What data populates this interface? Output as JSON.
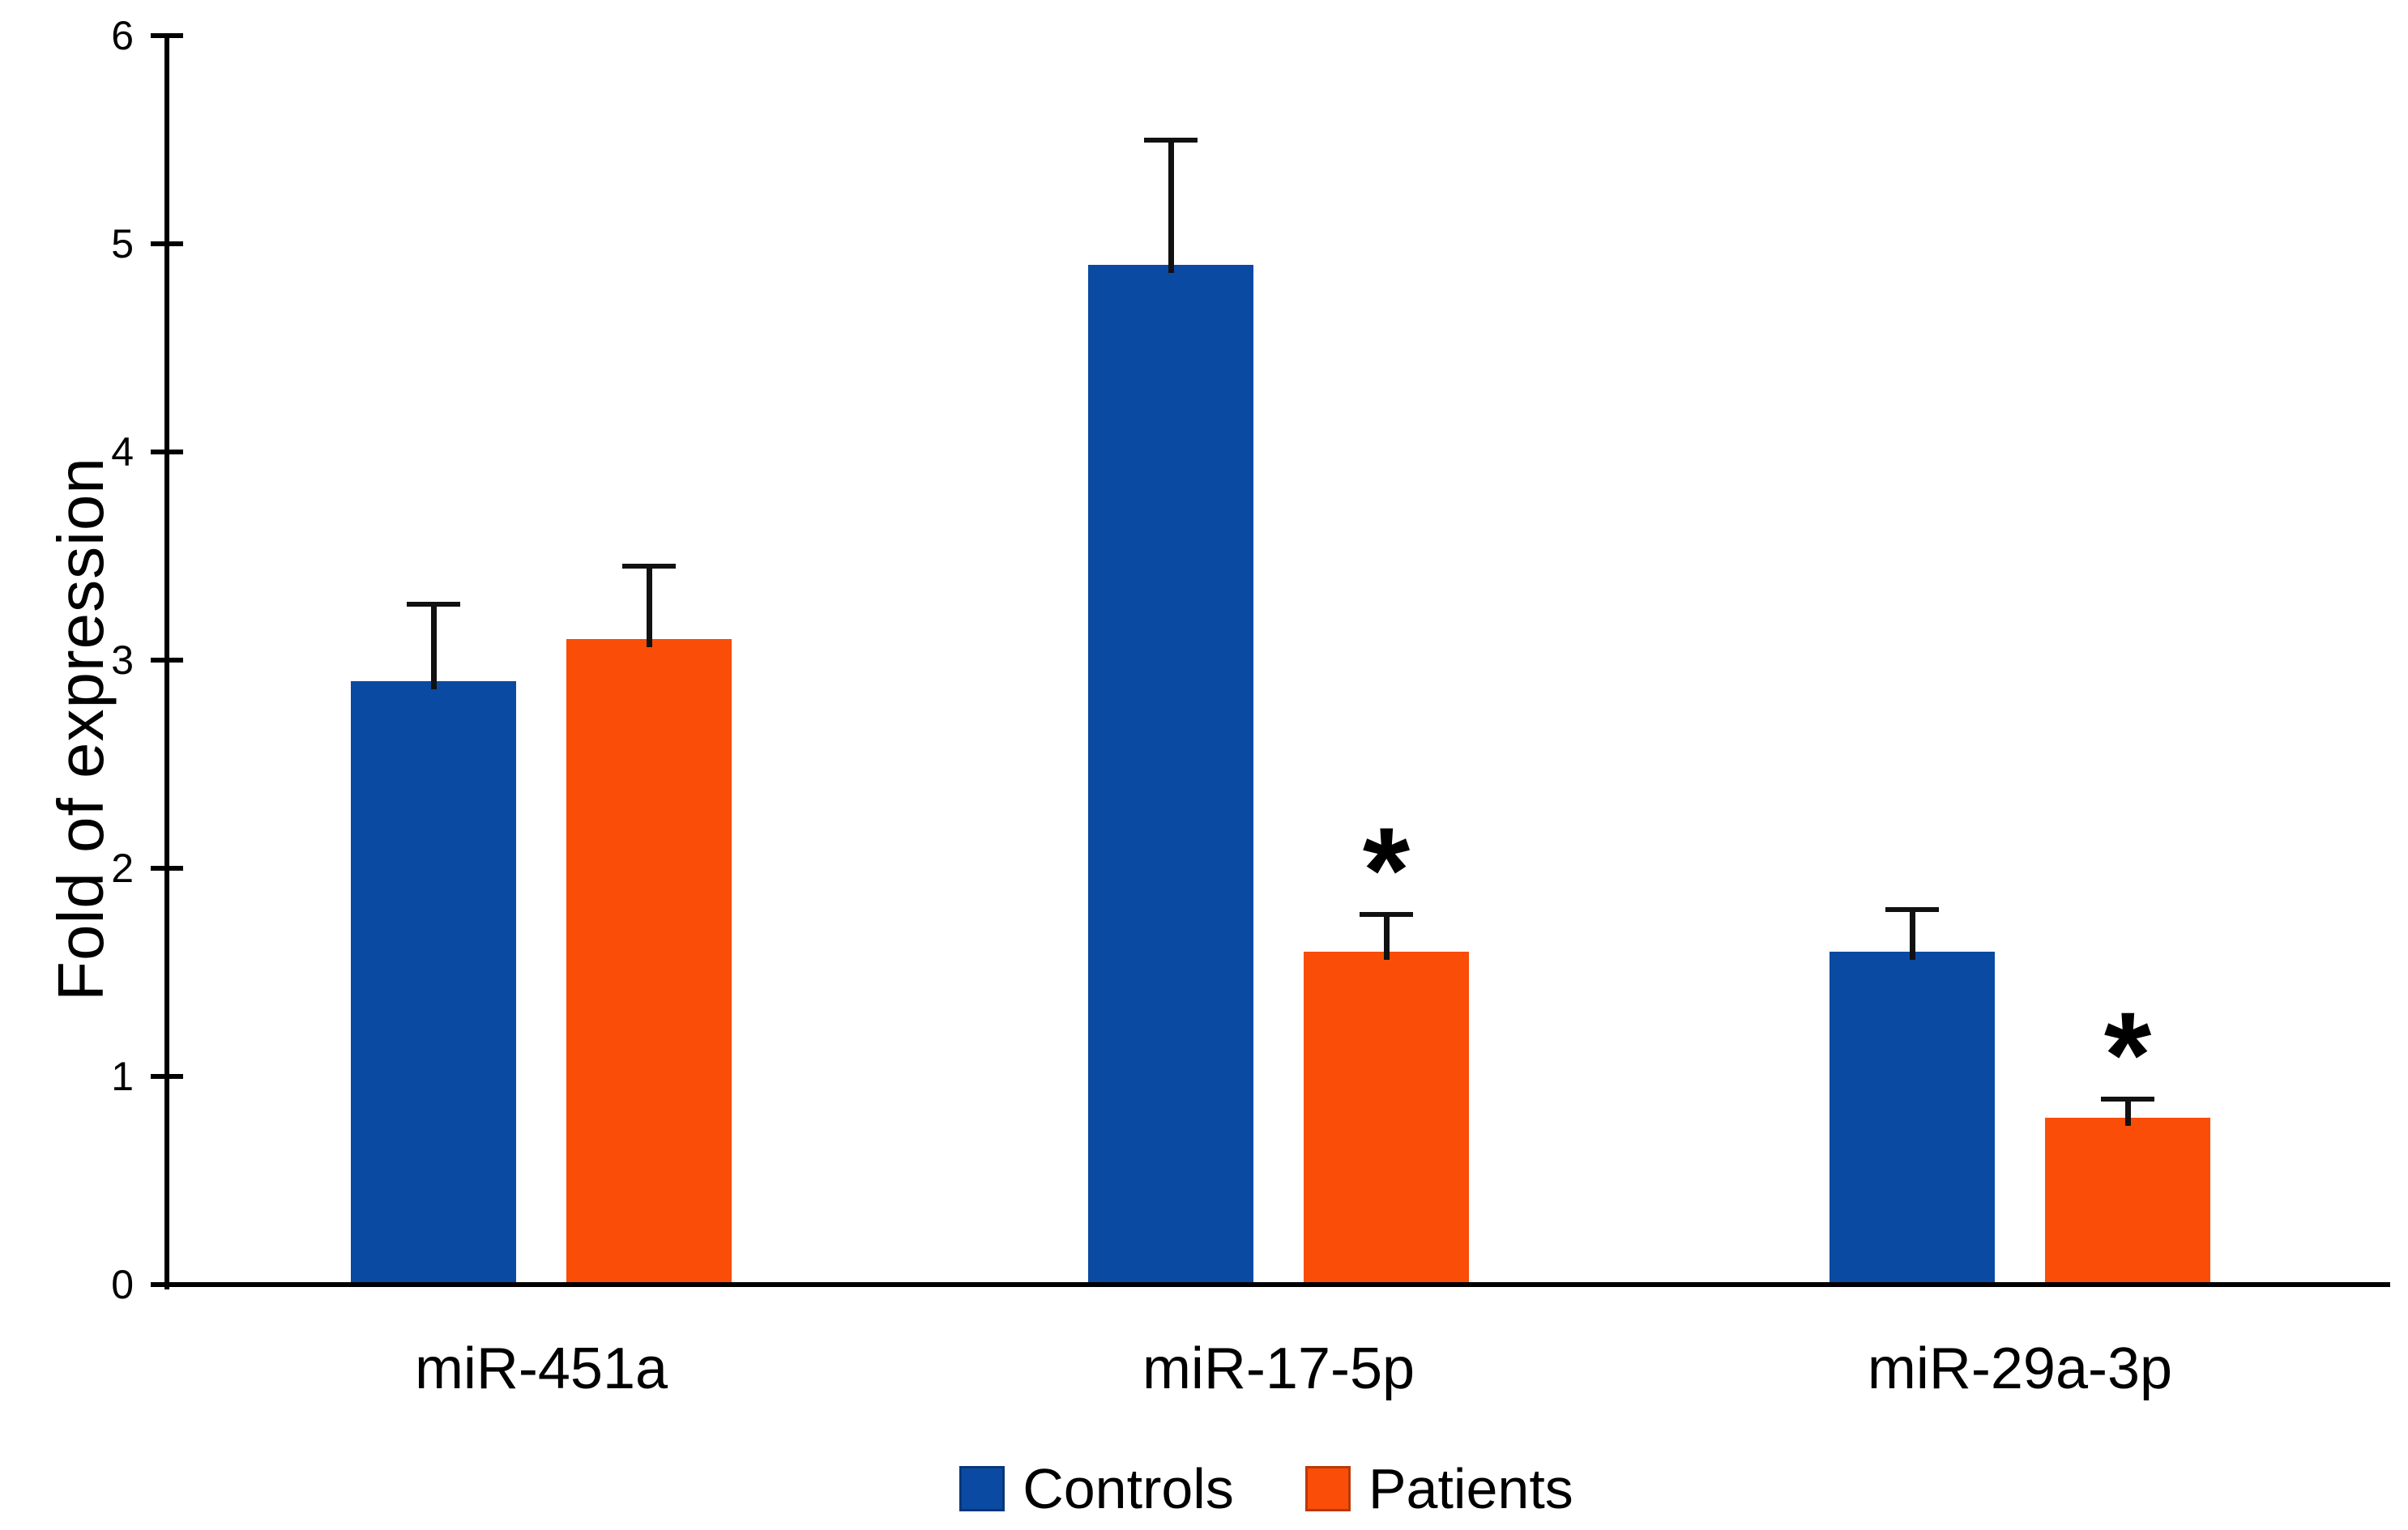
{
  "figure": {
    "background_color": "#FFFFFF",
    "axis_color": "#000000",
    "text_color": "#000000",
    "error_bar_color": "#111111"
  },
  "chart_data": {
    "type": "bar",
    "title": "",
    "xlabel": "",
    "ylabel": "Fold of expression",
    "categories": [
      "miR-451a",
      "miR-17-5p",
      "miR-29a-3p"
    ],
    "series": [
      {
        "name": "Controls",
        "color": "#0B4AA2",
        "values": [
          2.9,
          4.9,
          1.6
        ],
        "errors": [
          0.37,
          0.6,
          0.2
        ],
        "significance": [
          "",
          "",
          ""
        ]
      },
      {
        "name": "Patients",
        "color": "#F94D08",
        "values": [
          3.1,
          1.6,
          0.8
        ],
        "errors": [
          0.35,
          0.18,
          0.09
        ],
        "significance": [
          "",
          "*",
          "*"
        ]
      }
    ],
    "ylim": [
      0,
      6
    ],
    "yticks": [
      0,
      1,
      2,
      3,
      4,
      5,
      6
    ],
    "grid": false,
    "legend_position": "bottom-center",
    "error_bars": "upper-whiskers",
    "significance_marker": "*"
  }
}
